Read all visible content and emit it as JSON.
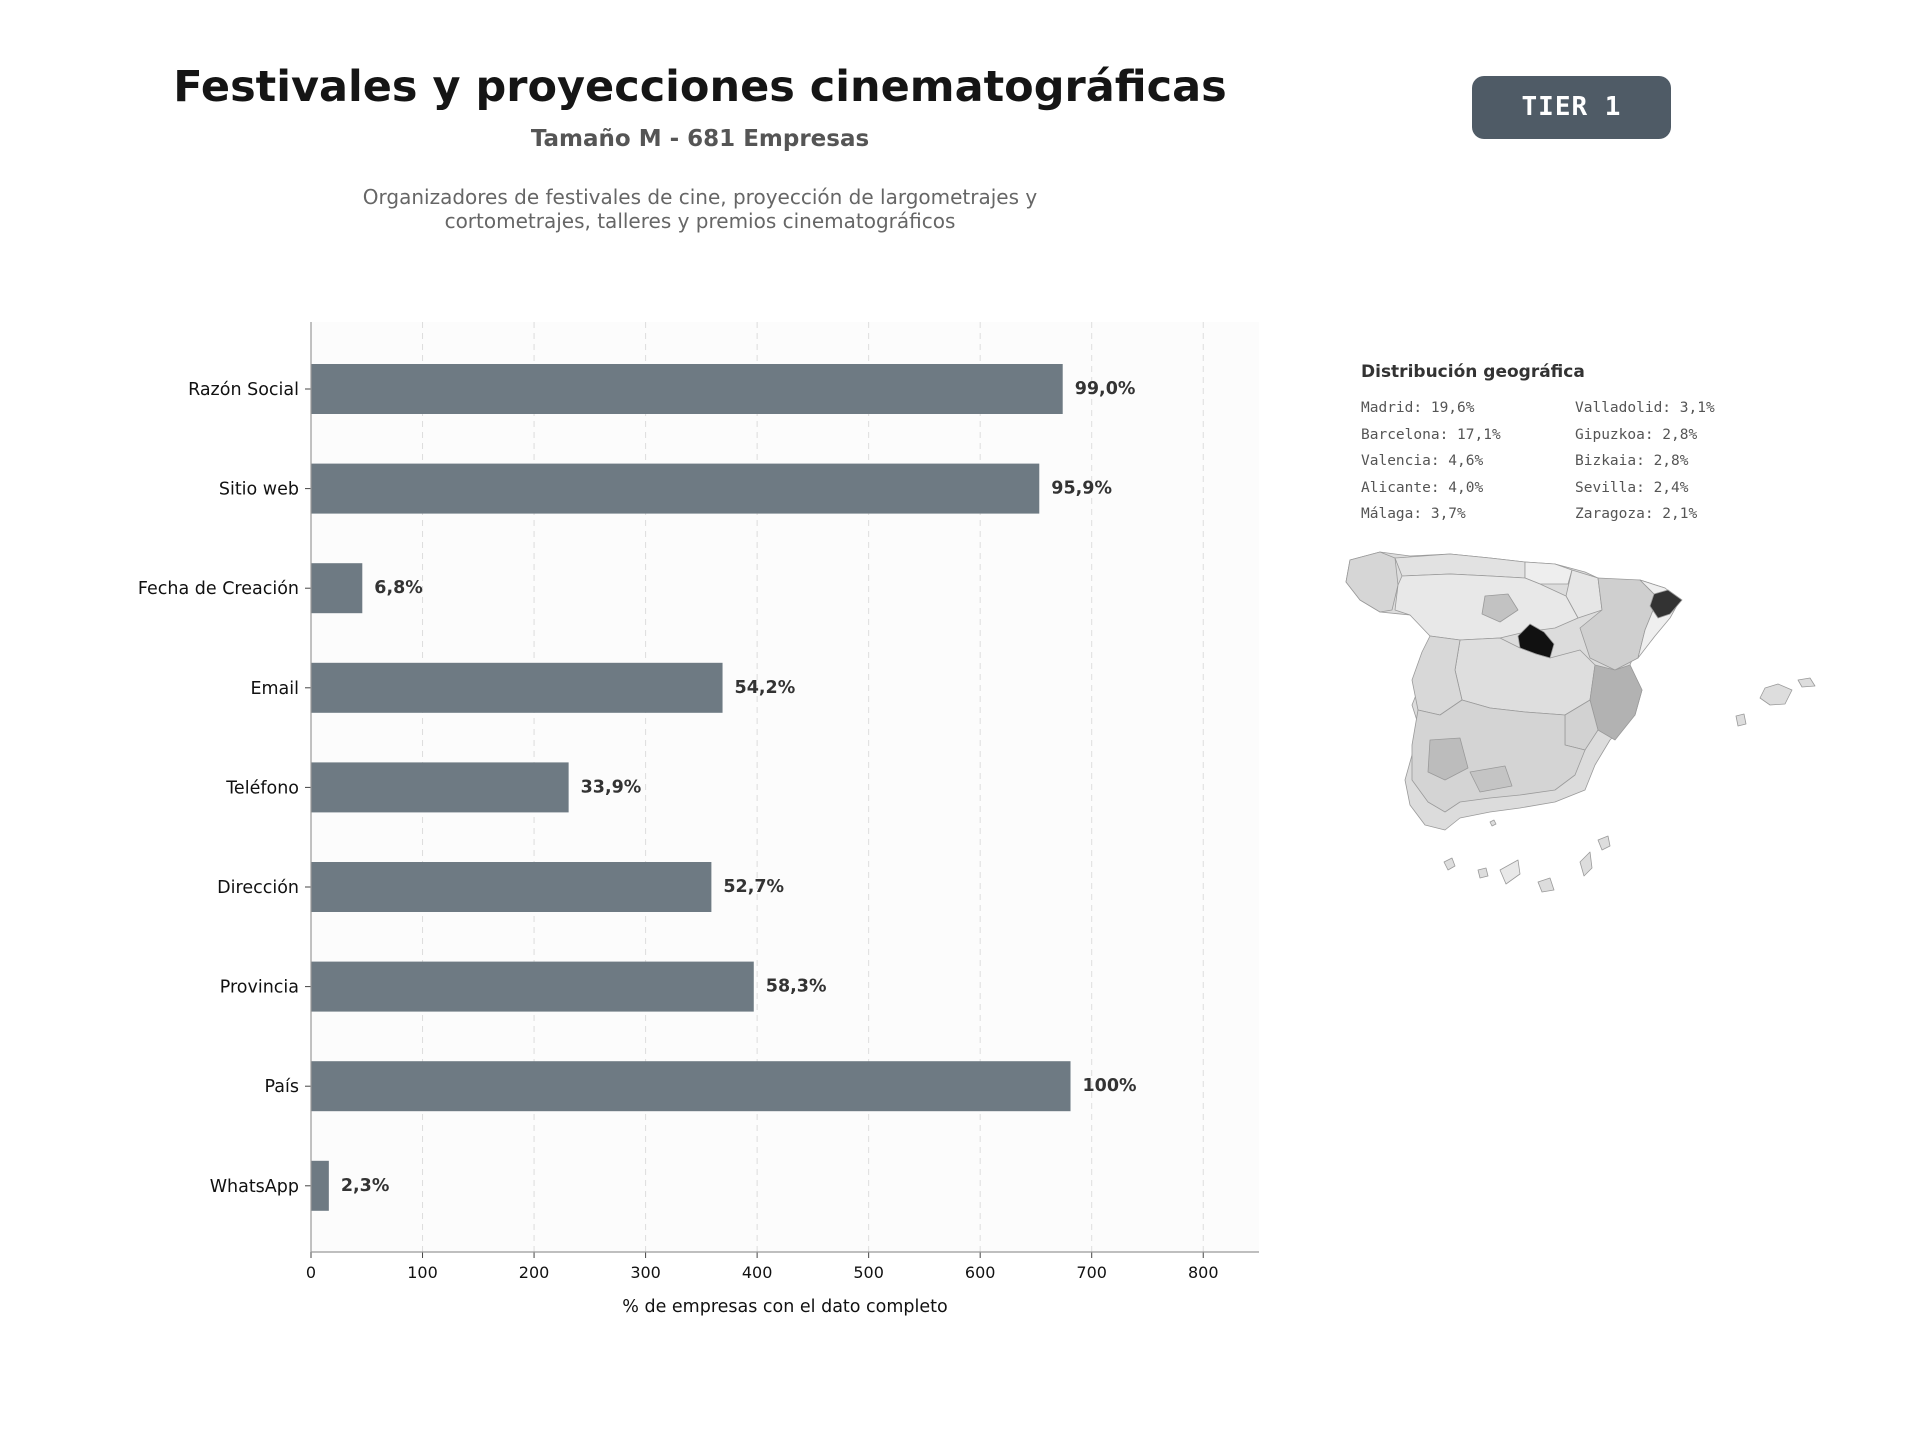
{
  "header": {
    "title": "Festivales y proyecciones cinematográficas",
    "subtitle": "Tamaño M - 681 Empresas",
    "description": "Organizadores de festivales de cine, proyección de largometrajes y cortometrajes, talleres y premios cinematográficos",
    "tier_badge": "TIER 1"
  },
  "colors": {
    "bar": "#6e7a83",
    "plot_bg": "#fcfcfc",
    "badge": "#4f5b66",
    "map_highlight_max": "#111111",
    "map_highlight_2": "#333333"
  },
  "chart_data": {
    "type": "bar",
    "orientation": "horizontal",
    "categories": [
      "Razón Social",
      "Sitio web",
      "Fecha de Creación",
      "Email",
      "Teléfono",
      "Dirección",
      "Provincia",
      "País",
      "WhatsApp"
    ],
    "values": [
      674,
      653,
      46,
      369,
      231,
      359,
      397,
      681,
      16
    ],
    "data_labels": [
      "99,0%",
      "95,9%",
      "6,8%",
      "54,2%",
      "33,9%",
      "52,7%",
      "58,3%",
      "100%",
      "2,3%"
    ],
    "xlabel": "% de empresas con el dato completo",
    "ylabel": "",
    "xlim": [
      0,
      850
    ],
    "xticks": [
      0,
      100,
      200,
      300,
      400,
      500,
      600,
      700,
      800
    ],
    "grid": "vertical dashed"
  },
  "geo": {
    "title": "Distribución geográfica",
    "items": [
      "Madrid: 19,6%",
      "Barcelona: 17,1%",
      "Valencia: 4,6%",
      "Alicante: 4,0%",
      "Málaga: 3,7%",
      "Valladolid: 3,1%",
      "Gipuzkoa: 2,8%",
      "Bizkaia: 2,8%",
      "Sevilla: 2,4%",
      "Zaragoza: 2,1%"
    ]
  }
}
